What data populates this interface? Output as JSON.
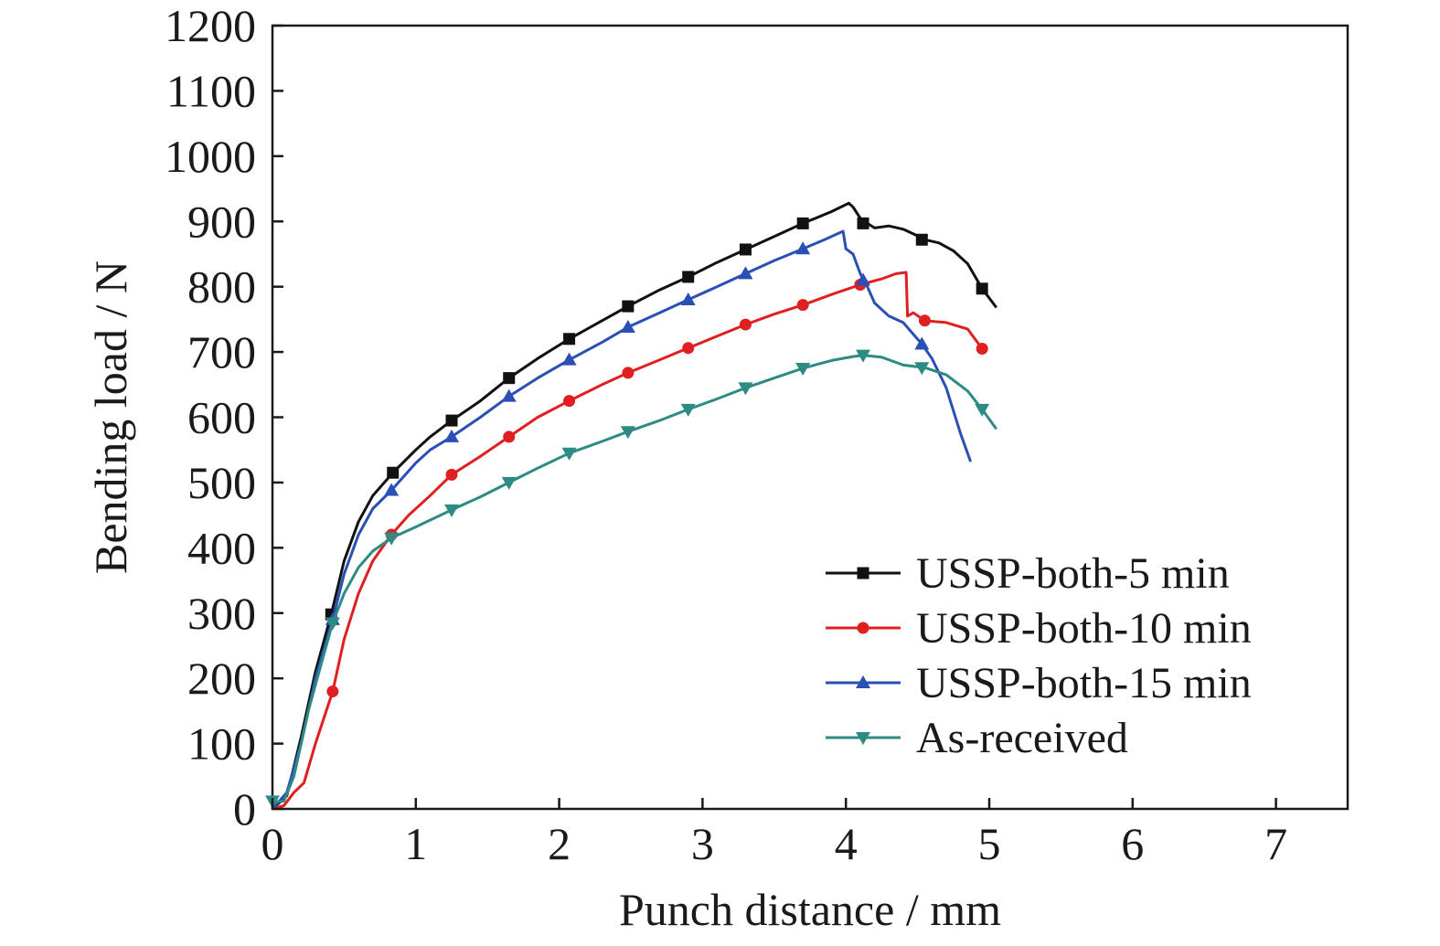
{
  "chart_data": {
    "type": "line",
    "xlabel": "Punch distance / mm",
    "ylabel": "Bending load / N",
    "xlim": [
      0,
      7.5
    ],
    "ylim": [
      0,
      1200
    ],
    "xticks": [
      0,
      1,
      2,
      3,
      4,
      5,
      6,
      7
    ],
    "yticks": [
      0,
      100,
      200,
      300,
      400,
      500,
      600,
      700,
      800,
      900,
      1000,
      1100,
      1200
    ],
    "grid": false,
    "legend_position": "bottom-right",
    "series": [
      {
        "name": "USSP-both-5 min",
        "color": "#111111",
        "marker": "square",
        "points": [
          [
            0,
            0
          ],
          [
            0.1,
            20
          ],
          [
            0.2,
            110
          ],
          [
            0.3,
            210
          ],
          [
            0.41,
            298
          ],
          [
            0.5,
            380
          ],
          [
            0.6,
            440
          ],
          [
            0.7,
            480
          ],
          [
            0.84,
            515
          ],
          [
            1.0,
            550
          ],
          [
            1.1,
            570
          ],
          [
            1.25,
            595
          ],
          [
            1.45,
            625
          ],
          [
            1.65,
            660
          ],
          [
            1.85,
            690
          ],
          [
            2.07,
            720
          ],
          [
            2.3,
            748
          ],
          [
            2.48,
            770
          ],
          [
            2.7,
            795
          ],
          [
            2.9,
            815
          ],
          [
            3.1,
            837
          ],
          [
            3.3,
            857
          ],
          [
            3.5,
            877
          ],
          [
            3.7,
            897
          ],
          [
            3.9,
            915
          ],
          [
            4.02,
            928
          ],
          [
            4.05,
            922
          ],
          [
            4.1,
            905
          ],
          [
            4.15,
            897
          ],
          [
            4.2,
            890
          ],
          [
            4.3,
            893
          ],
          [
            4.4,
            888
          ],
          [
            4.5,
            878
          ],
          [
            4.55,
            872
          ],
          [
            4.65,
            867
          ],
          [
            4.75,
            855
          ],
          [
            4.85,
            835
          ],
          [
            4.95,
            797
          ],
          [
            5.05,
            768
          ]
        ],
        "markers_at": [
          [
            0.41,
            298
          ],
          [
            0.84,
            515
          ],
          [
            1.25,
            595
          ],
          [
            1.65,
            660
          ],
          [
            2.07,
            720
          ],
          [
            2.48,
            770
          ],
          [
            2.9,
            815
          ],
          [
            3.3,
            857
          ],
          [
            3.7,
            897
          ],
          [
            4.12,
            897
          ],
          [
            4.53,
            872
          ],
          [
            4.95,
            797
          ]
        ]
      },
      {
        "name": "USSP-both-10 min",
        "color": "#e02020",
        "marker": "circle",
        "points": [
          [
            0,
            0
          ],
          [
            0.08,
            5
          ],
          [
            0.15,
            25
          ],
          [
            0.22,
            40
          ],
          [
            0.3,
            100
          ],
          [
            0.42,
            180
          ],
          [
            0.5,
            260
          ],
          [
            0.6,
            330
          ],
          [
            0.7,
            380
          ],
          [
            0.83,
            420
          ],
          [
            0.95,
            450
          ],
          [
            1.1,
            480
          ],
          [
            1.25,
            512
          ],
          [
            1.45,
            540
          ],
          [
            1.65,
            570
          ],
          [
            1.85,
            600
          ],
          [
            2.07,
            625
          ],
          [
            2.3,
            650
          ],
          [
            2.48,
            668
          ],
          [
            2.7,
            688
          ],
          [
            2.9,
            706
          ],
          [
            3.1,
            724
          ],
          [
            3.3,
            742
          ],
          [
            3.5,
            758
          ],
          [
            3.7,
            772
          ],
          [
            3.9,
            788
          ],
          [
            4.1,
            803
          ],
          [
            4.25,
            812
          ],
          [
            4.35,
            820
          ],
          [
            4.42,
            822
          ],
          [
            4.43,
            755
          ],
          [
            4.47,
            760
          ],
          [
            4.55,
            748
          ],
          [
            4.7,
            745
          ],
          [
            4.85,
            735
          ],
          [
            4.95,
            705
          ]
        ],
        "markers_at": [
          [
            0.42,
            180
          ],
          [
            0.83,
            420
          ],
          [
            1.25,
            512
          ],
          [
            1.65,
            570
          ],
          [
            2.07,
            625
          ],
          [
            2.48,
            668
          ],
          [
            2.9,
            706
          ],
          [
            3.3,
            742
          ],
          [
            3.7,
            772
          ],
          [
            4.1,
            803
          ],
          [
            4.55,
            748
          ],
          [
            4.95,
            705
          ]
        ]
      },
      {
        "name": "USSP-both-15 min",
        "color": "#2a4fb5",
        "marker": "triangle-up",
        "points": [
          [
            0,
            0
          ],
          [
            0.1,
            25
          ],
          [
            0.2,
            100
          ],
          [
            0.3,
            200
          ],
          [
            0.42,
            290
          ],
          [
            0.5,
            360
          ],
          [
            0.6,
            420
          ],
          [
            0.7,
            460
          ],
          [
            0.83,
            488
          ],
          [
            1.0,
            530
          ],
          [
            1.1,
            550
          ],
          [
            1.25,
            570
          ],
          [
            1.45,
            600
          ],
          [
            1.65,
            632
          ],
          [
            1.85,
            660
          ],
          [
            2.07,
            688
          ],
          [
            2.3,
            715
          ],
          [
            2.48,
            738
          ],
          [
            2.7,
            760
          ],
          [
            2.9,
            780
          ],
          [
            3.1,
            800
          ],
          [
            3.3,
            820
          ],
          [
            3.5,
            840
          ],
          [
            3.7,
            858
          ],
          [
            3.85,
            872
          ],
          [
            3.98,
            885
          ],
          [
            4.0,
            858
          ],
          [
            4.05,
            850
          ],
          [
            4.1,
            820
          ],
          [
            4.15,
            800
          ],
          [
            4.2,
            775
          ],
          [
            4.3,
            755
          ],
          [
            4.4,
            745
          ],
          [
            4.53,
            712
          ],
          [
            4.6,
            690
          ],
          [
            4.7,
            645
          ],
          [
            4.8,
            575
          ],
          [
            4.87,
            532
          ]
        ],
        "markers_at": [
          [
            0.42,
            290
          ],
          [
            0.83,
            488
          ],
          [
            1.25,
            570
          ],
          [
            1.65,
            632
          ],
          [
            2.07,
            688
          ],
          [
            2.48,
            738
          ],
          [
            2.9,
            780
          ],
          [
            3.3,
            820
          ],
          [
            3.7,
            858
          ],
          [
            4.12,
            810
          ],
          [
            4.53,
            712
          ]
        ]
      },
      {
        "name": "As-received",
        "color": "#2e8b84",
        "marker": "triangle-down",
        "points": [
          [
            0,
            10
          ],
          [
            0.08,
            12
          ],
          [
            0.15,
            50
          ],
          [
            0.25,
            150
          ],
          [
            0.35,
            230
          ],
          [
            0.42,
            285
          ],
          [
            0.5,
            330
          ],
          [
            0.6,
            370
          ],
          [
            0.7,
            395
          ],
          [
            0.83,
            415
          ],
          [
            1.0,
            432
          ],
          [
            1.25,
            458
          ],
          [
            1.45,
            478
          ],
          [
            1.65,
            500
          ],
          [
            1.85,
            522
          ],
          [
            2.07,
            545
          ],
          [
            2.3,
            563
          ],
          [
            2.48,
            578
          ],
          [
            2.7,
            595
          ],
          [
            2.9,
            612
          ],
          [
            3.1,
            628
          ],
          [
            3.3,
            645
          ],
          [
            3.5,
            660
          ],
          [
            3.7,
            675
          ],
          [
            3.9,
            687
          ],
          [
            4.05,
            693
          ],
          [
            4.12,
            695
          ],
          [
            4.25,
            692
          ],
          [
            4.4,
            680
          ],
          [
            4.55,
            676
          ],
          [
            4.7,
            665
          ],
          [
            4.85,
            640
          ],
          [
            4.95,
            612
          ],
          [
            5.05,
            582
          ]
        ],
        "markers_at": [
          [
            0,
            12
          ],
          [
            0.42,
            285
          ],
          [
            0.83,
            415
          ],
          [
            1.25,
            458
          ],
          [
            1.65,
            500
          ],
          [
            2.07,
            545
          ],
          [
            2.48,
            578
          ],
          [
            2.9,
            612
          ],
          [
            3.3,
            645
          ],
          [
            3.7,
            675
          ],
          [
            4.12,
            695
          ],
          [
            4.53,
            676
          ],
          [
            4.95,
            612
          ]
        ]
      }
    ]
  }
}
